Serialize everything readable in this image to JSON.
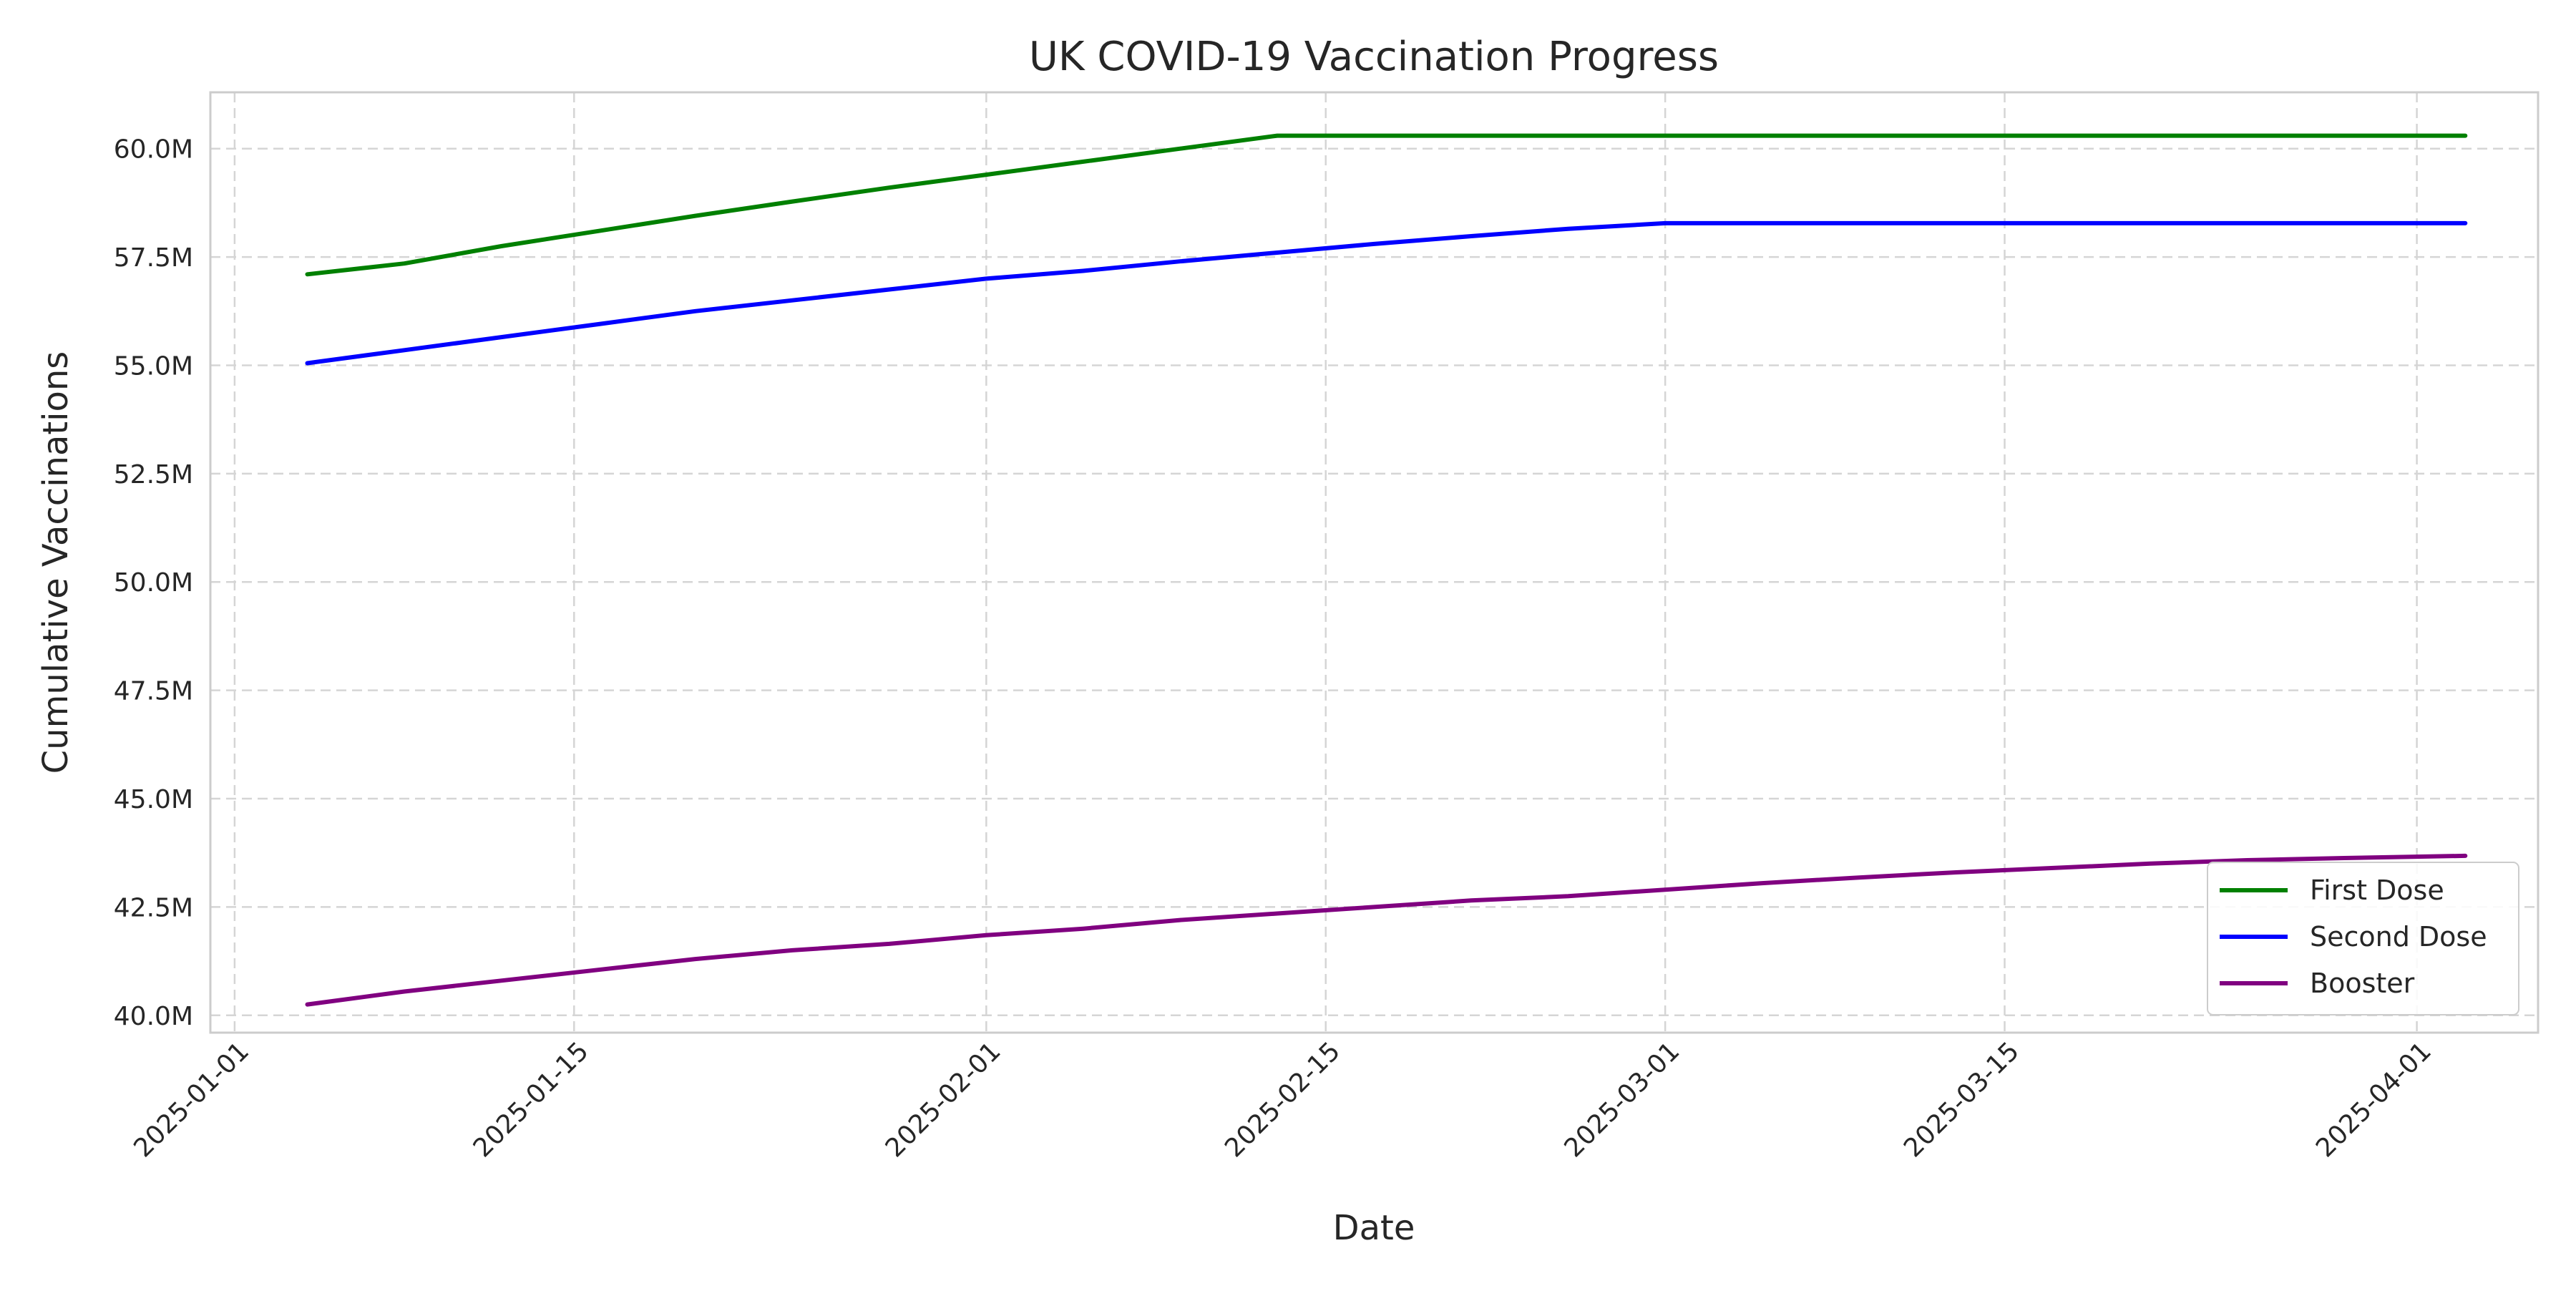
{
  "chart_data": {
    "type": "line",
    "title": "UK COVID-19 Vaccination Progress",
    "xlabel": "Date",
    "ylabel": "Cumulative Vaccinations",
    "x_axis": {
      "scale": "date",
      "range": [
        "2024-12-31",
        "2025-04-06"
      ],
      "ticks": [
        {
          "value": "2025-01-01",
          "label": "2025-01-01"
        },
        {
          "value": "2025-01-15",
          "label": "2025-01-15"
        },
        {
          "value": "2025-02-01",
          "label": "2025-02-01"
        },
        {
          "value": "2025-02-15",
          "label": "2025-02-15"
        },
        {
          "value": "2025-03-01",
          "label": "2025-03-01"
        },
        {
          "value": "2025-03-15",
          "label": "2025-03-15"
        },
        {
          "value": "2025-04-01",
          "label": "2025-04-01"
        }
      ]
    },
    "y_axis": {
      "range": [
        39.6,
        61.3
      ],
      "unit": "millions",
      "ticks": [
        {
          "value": 40.0,
          "label": "40.0M"
        },
        {
          "value": 42.5,
          "label": "42.5M"
        },
        {
          "value": 45.0,
          "label": "45.0M"
        },
        {
          "value": 47.5,
          "label": "47.5M"
        },
        {
          "value": 50.0,
          "label": "50.0M"
        },
        {
          "value": 52.5,
          "label": "52.5M"
        },
        {
          "value": 55.0,
          "label": "55.0M"
        },
        {
          "value": 57.5,
          "label": "57.5M"
        },
        {
          "value": 60.0,
          "label": "60.0M"
        }
      ]
    },
    "grid": true,
    "legend_position": "bottom-right",
    "series": [
      {
        "name": "First Dose",
        "color": "#008000",
        "points": [
          [
            "2025-01-04",
            57.1
          ],
          [
            "2025-01-08",
            57.35
          ],
          [
            "2025-01-12",
            57.75
          ],
          [
            "2025-01-16",
            58.1
          ],
          [
            "2025-01-20",
            58.45
          ],
          [
            "2025-01-24",
            58.78
          ],
          [
            "2025-01-28",
            59.1
          ],
          [
            "2025-02-01",
            59.4
          ],
          [
            "2025-02-05",
            59.7
          ],
          [
            "2025-02-09",
            60.0
          ],
          [
            "2025-02-13",
            60.3
          ],
          [
            "2025-02-20",
            60.3
          ],
          [
            "2025-03-01",
            60.3
          ],
          [
            "2025-03-15",
            60.3
          ],
          [
            "2025-04-03",
            60.3
          ]
        ]
      },
      {
        "name": "Second Dose",
        "color": "#0000ff",
        "points": [
          [
            "2025-01-04",
            55.05
          ],
          [
            "2025-01-08",
            55.35
          ],
          [
            "2025-01-12",
            55.65
          ],
          [
            "2025-01-16",
            55.95
          ],
          [
            "2025-01-20",
            56.25
          ],
          [
            "2025-01-24",
            56.5
          ],
          [
            "2025-01-28",
            56.75
          ],
          [
            "2025-02-01",
            57.0
          ],
          [
            "2025-02-05",
            57.18
          ],
          [
            "2025-02-09",
            57.4
          ],
          [
            "2025-02-13",
            57.6
          ],
          [
            "2025-02-17",
            57.8
          ],
          [
            "2025-02-21",
            57.98
          ],
          [
            "2025-02-25",
            58.15
          ],
          [
            "2025-03-01",
            58.28
          ],
          [
            "2025-03-15",
            58.28
          ],
          [
            "2025-04-03",
            58.28
          ]
        ]
      },
      {
        "name": "Booster",
        "color": "#800080",
        "points": [
          [
            "2025-01-04",
            40.25
          ],
          [
            "2025-01-08",
            40.55
          ],
          [
            "2025-01-12",
            40.8
          ],
          [
            "2025-01-16",
            41.05
          ],
          [
            "2025-01-20",
            41.3
          ],
          [
            "2025-01-24",
            41.5
          ],
          [
            "2025-01-28",
            41.65
          ],
          [
            "2025-02-01",
            41.85
          ],
          [
            "2025-02-05",
            42.0
          ],
          [
            "2025-02-09",
            42.2
          ],
          [
            "2025-02-13",
            42.35
          ],
          [
            "2025-02-17",
            42.5
          ],
          [
            "2025-02-21",
            42.65
          ],
          [
            "2025-02-25",
            42.75
          ],
          [
            "2025-03-01",
            42.9
          ],
          [
            "2025-03-05",
            43.05
          ],
          [
            "2025-03-09",
            43.18
          ],
          [
            "2025-03-13",
            43.3
          ],
          [
            "2025-03-17",
            43.4
          ],
          [
            "2025-03-21",
            43.5
          ],
          [
            "2025-03-25",
            43.58
          ],
          [
            "2025-03-29",
            43.63
          ],
          [
            "2025-04-03",
            43.68
          ]
        ]
      }
    ]
  }
}
